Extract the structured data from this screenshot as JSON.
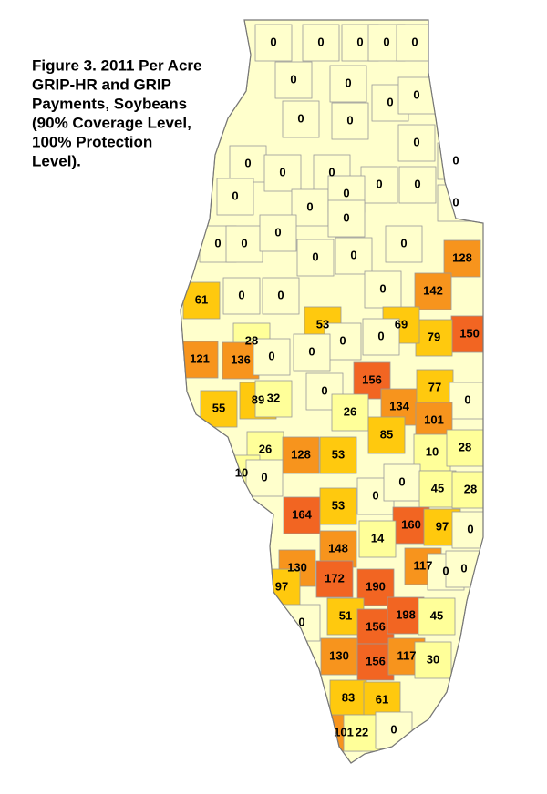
{
  "title_lines": [
    "Figure 3.  2011 Per Acre",
    "GRIP-HR and GRIP",
    "Payments, Soybeans",
    "(90% Coverage Level,",
    "100% Protection",
    "Level)."
  ],
  "regions": [
    {
      "value": 0,
      "color": "#ffffcc"
    },
    {
      "value": 0,
      "color": "#ffffcc"
    },
    {
      "value": 0,
      "color": "#ffffcc"
    },
    {
      "value": 0,
      "color": "#ffffcc"
    },
    {
      "value": 0,
      "color": "#ffffcc"
    },
    {
      "value": 0,
      "color": "#ffffcc"
    },
    {
      "value": 0,
      "color": "#ffffcc"
    },
    {
      "value": 0,
      "color": "#ffffcc"
    },
    {
      "value": 0,
      "color": "#ffffcc"
    },
    {
      "value": 0,
      "color": "#ffffcc"
    },
    {
      "value": 0,
      "color": "#ffffcc"
    },
    {
      "value": 0,
      "color": "#ffffcc"
    },
    {
      "value": 0,
      "color": "#ffffcc"
    },
    {
      "value": 0,
      "color": "#ffffcc"
    },
    {
      "value": 0,
      "color": "#ffffcc"
    },
    {
      "value": 0,
      "color": "#ffffcc"
    },
    {
      "value": 0,
      "color": "#ffffcc"
    },
    {
      "value": 0,
      "color": "#ffffcc"
    },
    {
      "value": 0,
      "color": "#ffffcc"
    },
    {
      "value": 0,
      "color": "#ffffcc"
    },
    {
      "value": 0,
      "color": "#ffffcc"
    },
    {
      "value": 0,
      "color": "#ffffcc"
    },
    {
      "value": 0,
      "color": "#ffffcc"
    },
    {
      "value": 0,
      "color": "#ffffcc"
    },
    {
      "value": 0,
      "color": "#ffffcc"
    },
    {
      "value": 0,
      "color": "#ffffcc"
    },
    {
      "value": 0,
      "color": "#ffffcc"
    },
    {
      "value": 0,
      "color": "#ffffcc"
    },
    {
      "value": 0,
      "color": "#ffffcc"
    },
    {
      "value": 128,
      "color": "#f7941d"
    },
    {
      "value": 61,
      "color": "#ffc90e"
    },
    {
      "value": 0,
      "color": "#ffffcc"
    },
    {
      "value": 0,
      "color": "#ffffcc"
    },
    {
      "value": 0,
      "color": "#ffffcc"
    },
    {
      "value": 142,
      "color": "#f7941d"
    },
    {
      "value": 53,
      "color": "#ffc90e"
    },
    {
      "value": 150,
      "color": "#f26522"
    },
    {
      "value": 79,
      "color": "#ffc90e"
    },
    {
      "value": 69,
      "color": "#ffc90e"
    },
    {
      "value": 0,
      "color": "#ffffcc"
    },
    {
      "value": 0,
      "color": "#ffffcc"
    },
    {
      "value": 28,
      "color": "#ffff99"
    },
    {
      "value": 121,
      "color": "#f7941d"
    },
    {
      "value": 136,
      "color": "#f7941d"
    },
    {
      "value": 0,
      "color": "#ffffcc"
    },
    {
      "value": 0,
      "color": "#ffffcc"
    },
    {
      "value": 156,
      "color": "#f26522"
    },
    {
      "value": 134,
      "color": "#f7941d"
    },
    {
      "value": 77,
      "color": "#ffc90e"
    },
    {
      "value": 0,
      "color": "#ffffcc"
    },
    {
      "value": 55,
      "color": "#ffc90e"
    },
    {
      "value": 89,
      "color": "#ffc90e"
    },
    {
      "value": 32,
      "color": "#ffff99"
    },
    {
      "value": 0,
      "color": "#ffffcc"
    },
    {
      "value": 26,
      "color": "#ffff99"
    },
    {
      "value": 85,
      "color": "#ffc90e"
    },
    {
      "value": 101,
      "color": "#f7941d"
    },
    {
      "value": 26,
      "color": "#ffff99"
    },
    {
      "value": 128,
      "color": "#f7941d"
    },
    {
      "value": 53,
      "color": "#ffc90e"
    },
    {
      "value": 10,
      "color": "#ffff99"
    },
    {
      "value": 28,
      "color": "#ffff99"
    },
    {
      "value": 10,
      "color": "#ffff99"
    },
    {
      "value": 0,
      "color": "#ffffcc"
    },
    {
      "value": 0,
      "color": "#ffffcc"
    },
    {
      "value": 0,
      "color": "#ffffcc"
    },
    {
      "value": 45,
      "color": "#ffff99"
    },
    {
      "value": 28,
      "color": "#ffff99"
    },
    {
      "value": 164,
      "color": "#f26522"
    },
    {
      "value": 53,
      "color": "#ffc90e"
    },
    {
      "value": 160,
      "color": "#f26522"
    },
    {
      "value": 97,
      "color": "#ffc90e"
    },
    {
      "value": 0,
      "color": "#ffffcc"
    },
    {
      "value": 14,
      "color": "#ffff99"
    },
    {
      "value": 148,
      "color": "#f7941d"
    },
    {
      "value": 130,
      "color": "#f7941d"
    },
    {
      "value": 172,
      "color": "#f26522"
    },
    {
      "value": 190,
      "color": "#f26522"
    },
    {
      "value": 117,
      "color": "#f7941d"
    },
    {
      "value": 0,
      "color": "#ffffcc"
    },
    {
      "value": 0,
      "color": "#ffffcc"
    },
    {
      "value": 97,
      "color": "#ffc90e"
    },
    {
      "value": 0,
      "color": "#ffffcc"
    },
    {
      "value": 51,
      "color": "#ffc90e"
    },
    {
      "value": 156,
      "color": "#f26522"
    },
    {
      "value": 198,
      "color": "#f26522"
    },
    {
      "value": 45,
      "color": "#ffff99"
    },
    {
      "value": 130,
      "color": "#f7941d"
    },
    {
      "value": 156,
      "color": "#f26522"
    },
    {
      "value": 117,
      "color": "#f7941d"
    },
    {
      "value": 30,
      "color": "#ffff99"
    },
    {
      "value": 83,
      "color": "#ffc90e"
    },
    {
      "value": 61,
      "color": "#ffc90e"
    },
    {
      "value": 101,
      "color": "#f7941d"
    },
    {
      "value": 22,
      "color": "#ffff99"
    },
    {
      "value": 0,
      "color": "#ffffcc"
    }
  ]
}
